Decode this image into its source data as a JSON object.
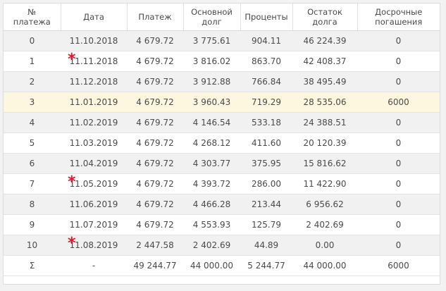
{
  "headers": {
    "num": [
      "№",
      "платежа"
    ],
    "date": [
      "Дата"
    ],
    "payment": [
      "Платеж"
    ],
    "principal": [
      "Основной",
      "долг"
    ],
    "interest": [
      "Проценты"
    ],
    "balance": [
      "Остаток",
      "долга"
    ],
    "early": [
      "Досрочные",
      "погашения"
    ]
  },
  "rows": [
    {
      "num": "0",
      "date": "11.10.2018",
      "payment": "4 679.72",
      "principal": "3 775.61",
      "interest": "904.11",
      "balance": "46 224.39",
      "early": "0",
      "star": false,
      "highlight": false
    },
    {
      "num": "1",
      "date": "11.11.2018",
      "payment": "4 679.72",
      "principal": "3 816.02",
      "interest": "863.70",
      "balance": "42 408.37",
      "early": "0",
      "star": true,
      "highlight": false
    },
    {
      "num": "2",
      "date": "11.12.2018",
      "payment": "4 679.72",
      "principal": "3 912.88",
      "interest": "766.84",
      "balance": "38 495.49",
      "early": "0",
      "star": false,
      "highlight": false
    },
    {
      "num": "3",
      "date": "11.01.2019",
      "payment": "4 679.72",
      "principal": "3 960.43",
      "interest": "719.29",
      "balance": "28 535.06",
      "early": "6000",
      "star": false,
      "highlight": true
    },
    {
      "num": "4",
      "date": "11.02.2019",
      "payment": "4 679.72",
      "principal": "4 146.54",
      "interest": "533.18",
      "balance": "24 388.51",
      "early": "0",
      "star": false,
      "highlight": false
    },
    {
      "num": "5",
      "date": "11.03.2019",
      "payment": "4 679.72",
      "principal": "4 268.12",
      "interest": "411.60",
      "balance": "20 120.39",
      "early": "0",
      "star": false,
      "highlight": false
    },
    {
      "num": "6",
      "date": "11.04.2019",
      "payment": "4 679.72",
      "principal": "4 303.77",
      "interest": "375.95",
      "balance": "15 816.62",
      "early": "0",
      "star": false,
      "highlight": false
    },
    {
      "num": "7",
      "date": "11.05.2019",
      "payment": "4 679.72",
      "principal": "4 393.72",
      "interest": "286.00",
      "balance": "11 422.90",
      "early": "0",
      "star": true,
      "highlight": false
    },
    {
      "num": "8",
      "date": "11.06.2019",
      "payment": "4 679.72",
      "principal": "4 466.28",
      "interest": "213.44",
      "balance": "6 956.62",
      "early": "0",
      "star": false,
      "highlight": false
    },
    {
      "num": "9",
      "date": "11.07.2019",
      "payment": "4 679.72",
      "principal": "4 553.93",
      "interest": "125.79",
      "balance": "2 402.69",
      "early": "0",
      "star": false,
      "highlight": false
    },
    {
      "num": "10",
      "date": "11.08.2019",
      "payment": "2 447.58",
      "principal": "2 402.69",
      "interest": "44.89",
      "balance": "0.00",
      "early": "0",
      "star": true,
      "highlight": false
    }
  ],
  "total": {
    "num": "Σ",
    "date": "-",
    "payment": "49 244.77",
    "principal": "44 000.00",
    "interest": "5 244.77",
    "balance": "44 000.00",
    "early": "6000"
  },
  "marker": "*",
  "colors": {
    "highlight_row": "#fdf7df",
    "stripe": "#f1f1f1",
    "marker": "#e8142a"
  }
}
